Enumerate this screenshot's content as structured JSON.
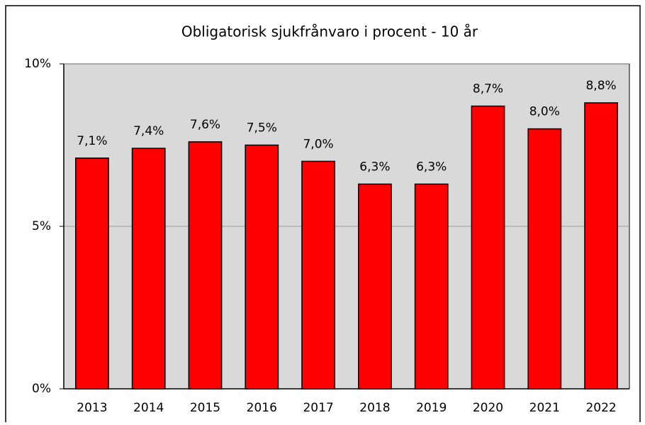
{
  "chart_data": {
    "type": "bar",
    "title": "Obligatorisk sjukfrånvaro i procent - 10 år",
    "categories": [
      "2013",
      "2014",
      "2015",
      "2016",
      "2017",
      "2018",
      "2019",
      "2020",
      "2021",
      "2022"
    ],
    "values": [
      7.1,
      7.4,
      7.6,
      7.5,
      7.0,
      6.3,
      6.3,
      8.7,
      8.0,
      8.8
    ],
    "value_labels": [
      "7,1%",
      "7,4%",
      "7,6%",
      "7,5%",
      "7,0%",
      "6,3%",
      "6,3%",
      "8,7%",
      "8,0%",
      "8,8%"
    ],
    "color": "#ff0000",
    "ylim": [
      0,
      10
    ],
    "yticks": [
      {
        "value": 0,
        "label": "0%"
      },
      {
        "value": 5,
        "label": "5%"
      },
      {
        "value": 10,
        "label": "10%"
      }
    ],
    "grid": true
  }
}
